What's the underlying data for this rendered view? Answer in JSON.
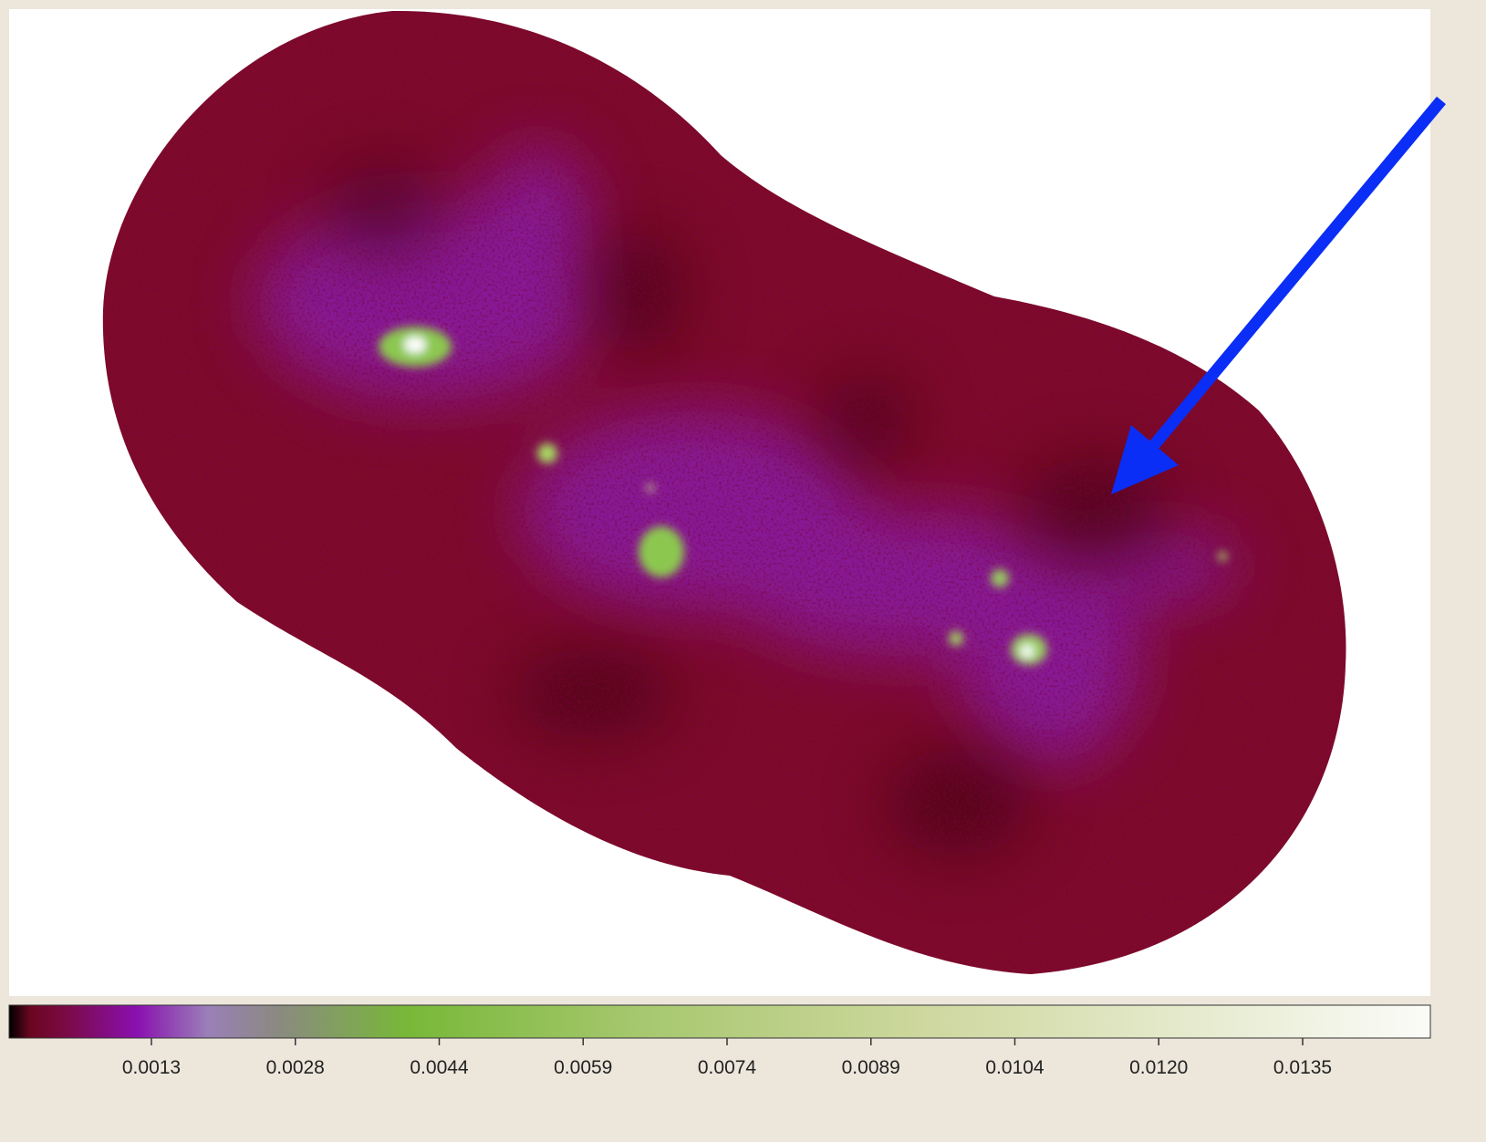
{
  "colorbar": {
    "tick_labels": [
      "0.0013",
      "0.0028",
      "0.0044",
      "0.0059",
      "0.0074",
      "0.0089",
      "0.0104",
      "0.0120",
      "0.0135"
    ]
  }
}
